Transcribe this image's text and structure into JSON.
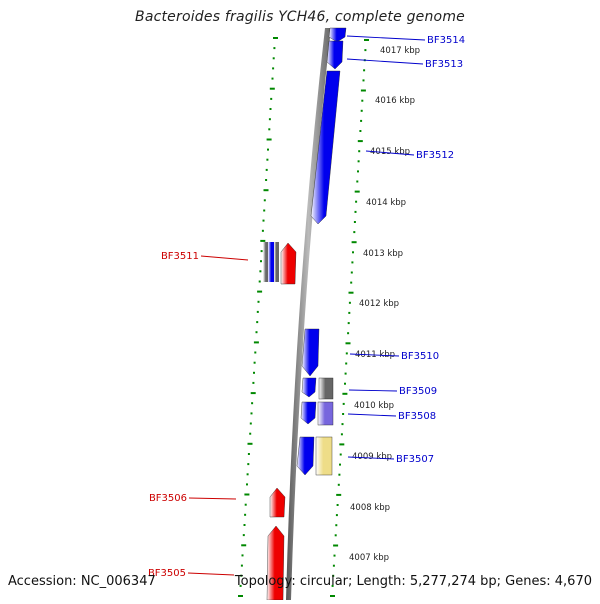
{
  "title": "Bacteroides fragilis YCH46, complete genome",
  "footer": {
    "accession": "Accession: NC_006347",
    "summary": "Topology: circular; Length: 5,277,274 bp; Genes: 4,670"
  },
  "colors": {
    "forward_gene": "#0000ee",
    "reverse_gene": "#ee0000",
    "gray_gene": "#666666",
    "purple_gene": "#7766dd",
    "yellow_gene": "#eedd88",
    "backbone": "#999999",
    "tick": "#008800",
    "forward_label": "#0000cc",
    "reverse_label": "#cc0000"
  },
  "scale_labels": [
    {
      "id": "kbp-4017",
      "text": "4017 kbp"
    },
    {
      "id": "kbp-4016",
      "text": "4016 kbp"
    },
    {
      "id": "kbp-4015",
      "text": "4015 kbp"
    },
    {
      "id": "kbp-4014",
      "text": "4014 kbp"
    },
    {
      "id": "kbp-4013",
      "text": "4013 kbp"
    },
    {
      "id": "kbp-4012",
      "text": "4012 kbp"
    },
    {
      "id": "kbp-4011",
      "text": "4011 kbp"
    },
    {
      "id": "kbp-4010",
      "text": "4010 kbp"
    },
    {
      "id": "kbp-4009",
      "text": "4009 kbp"
    },
    {
      "id": "kbp-4008",
      "text": "4008 kbp"
    },
    {
      "id": "kbp-4007",
      "text": "4007 kbp"
    }
  ],
  "gene_labels": [
    {
      "id": "BF3514",
      "text": "BF3514",
      "strand": "forward"
    },
    {
      "id": "BF3513",
      "text": "BF3513",
      "strand": "forward"
    },
    {
      "id": "BF3512",
      "text": "BF3512",
      "strand": "forward"
    },
    {
      "id": "BF3511",
      "text": "BF3511",
      "strand": "reverse"
    },
    {
      "id": "BF3510",
      "text": "BF3510",
      "strand": "forward"
    },
    {
      "id": "BF3509",
      "text": "BF3509",
      "strand": "forward"
    },
    {
      "id": "BF3508",
      "text": "BF3508",
      "strand": "forward"
    },
    {
      "id": "BF3507",
      "text": "BF3507",
      "strand": "forward"
    },
    {
      "id": "BF3506",
      "text": "BF3506",
      "strand": "reverse"
    },
    {
      "id": "BF3505",
      "text": "BF3505",
      "strand": "reverse"
    }
  ]
}
